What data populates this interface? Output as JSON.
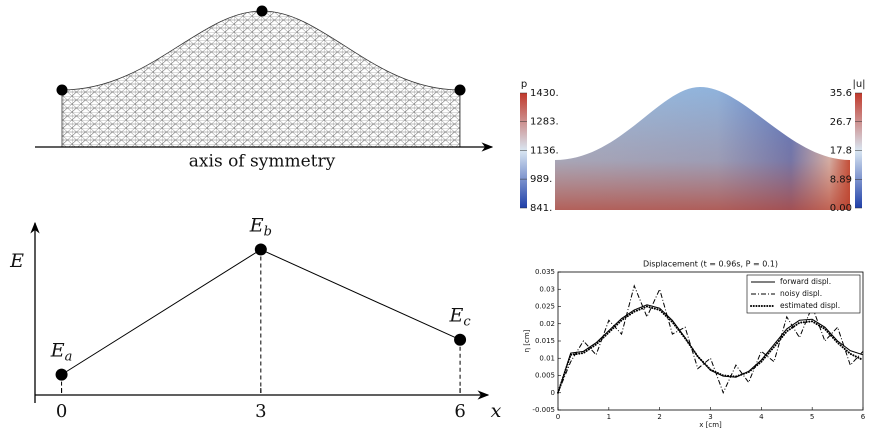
{
  "mesh_panel": {
    "label": "axis of symmetry"
  },
  "field_panel": {
    "p_colorbar": {
      "title": "p",
      "lim": [
        841,
        1430
      ],
      "colors": [
        "#1f3fa8",
        "#d9e6f2",
        "#c0392b"
      ],
      "ticks": [
        {
          "value": 1430,
          "label": "1430."
        },
        {
          "value": 1283,
          "label": "1283."
        },
        {
          "value": 1136,
          "label": "1136."
        },
        {
          "value": 989,
          "label": "989."
        },
        {
          "value": 841,
          "label": "841."
        }
      ]
    },
    "u_colorbar": {
      "title": "|u|",
      "lim": [
        0,
        35.6
      ],
      "colors": [
        "#1f3fa8",
        "#d9e6f2",
        "#c0392b"
      ],
      "ticks": [
        35.6,
        26.7,
        17.8,
        8.89,
        {
          "value": 0,
          "label": "0.00"
        }
      ]
    }
  },
  "chart_data": [
    {
      "type": "line",
      "xlabel": "x",
      "ylabel": "E",
      "xlim": [
        -0.4,
        6.3
      ],
      "ylim": [
        0,
        1.1
      ],
      "xticks": [
        0,
        3,
        6
      ],
      "x": [
        0,
        3,
        6
      ],
      "series": [
        {
          "color": "#000000",
          "values": [
            0.14,
            1.0,
            0.38
          ],
          "point_labels": [
            {
              "base": "E",
              "sub": "a"
            },
            {
              "base": "E",
              "sub": "b"
            },
            {
              "base": "E",
              "sub": "c"
            }
          ]
        }
      ]
    },
    {
      "type": "line",
      "title": "Displacement (t = 0.96s, P = 0.1)",
      "xlabel": "x [cm]",
      "ylabel": "η [cm]",
      "xlim": [
        0,
        6
      ],
      "ylim": [
        -0.005,
        0.035
      ],
      "xticks": [
        0,
        1,
        2,
        3,
        4,
        5,
        6
      ],
      "yticks": [
        -0.005,
        0,
        0.005,
        0.01,
        0.015,
        0.02,
        0.025,
        0.03,
        0.035
      ],
      "legend": "upper right",
      "x": [
        0,
        0.25,
        0.5,
        0.75,
        1,
        1.25,
        1.5,
        1.75,
        2,
        2.25,
        2.5,
        2.75,
        3,
        3.25,
        3.5,
        3.75,
        4,
        4.25,
        4.5,
        4.75,
        5,
        5.25,
        5.5,
        5.75,
        6
      ],
      "series": [
        {
          "name": "forward displ.",
          "color": "#000000",
          "linestyle": "solid",
          "values": [
            0,
            0.0115,
            0.012,
            0.0145,
            0.018,
            0.0215,
            0.024,
            0.0255,
            0.0245,
            0.021,
            0.016,
            0.0105,
            0.0065,
            0.0048,
            0.0045,
            0.0062,
            0.0095,
            0.014,
            0.0185,
            0.021,
            0.0213,
            0.019,
            0.015,
            0.0122,
            0.011
          ]
        },
        {
          "name": "noisy displ.",
          "color": "#000000",
          "linestyle": "dashdot",
          "values": [
            0,
            0.009,
            0.015,
            0.011,
            0.021,
            0.017,
            0.031,
            0.022,
            0.03,
            0.017,
            0.019,
            0.007,
            0.01,
            0,
            0.008,
            0.003,
            0.012,
            0.009,
            0.022,
            0.016,
            0.025,
            0.015,
            0.019,
            0.008,
            0.012
          ]
        },
        {
          "name": "estimated displ.",
          "color": "#000000",
          "linestyle": "dotted",
          "values": [
            0,
            0.011,
            0.0115,
            0.014,
            0.0175,
            0.021,
            0.0235,
            0.025,
            0.024,
            0.0205,
            0.0158,
            0.0105,
            0.0067,
            0.005,
            0.0047,
            0.006,
            0.009,
            0.0133,
            0.0178,
            0.0203,
            0.0207,
            0.0185,
            0.0145,
            0.0113,
            0.0095
          ]
        }
      ]
    }
  ]
}
